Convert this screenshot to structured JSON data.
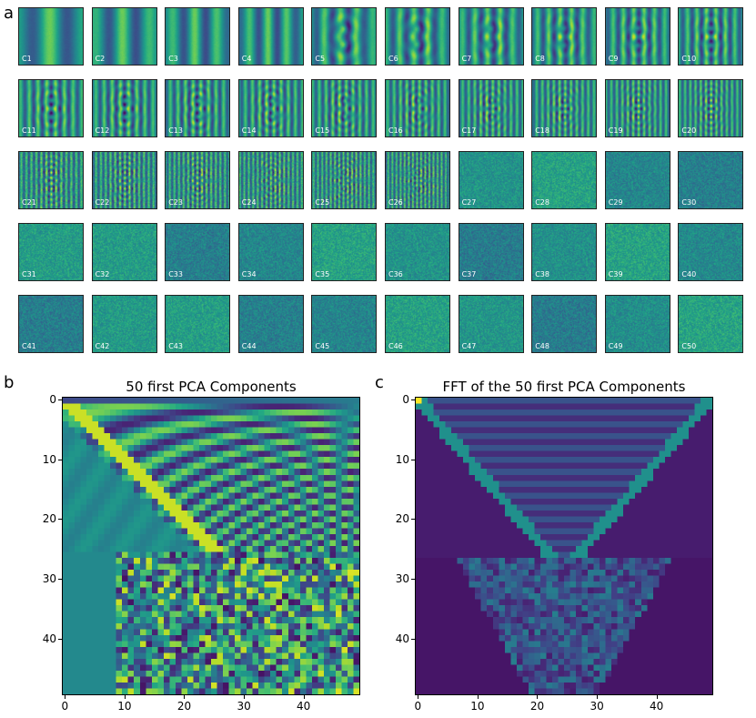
{
  "panels": {
    "a": "a",
    "b": "b",
    "c": "c"
  },
  "chart_data": [
    {
      "type": "heatmap",
      "panel": "a",
      "title": "",
      "grid": {
        "rows": 5,
        "cols": 10
      },
      "labels": [
        "C1",
        "C2",
        "C3",
        "C4",
        "C5",
        "C6",
        "C7",
        "C8",
        "C9",
        "C10",
        "C11",
        "C12",
        "C13",
        "C14",
        "C15",
        "C16",
        "C17",
        "C18",
        "C19",
        "C20",
        "C21",
        "C22",
        "C23",
        "C24",
        "C25",
        "C26",
        "C27",
        "C28",
        "C29",
        "C30",
        "C31",
        "C32",
        "C33",
        "C34",
        "C35",
        "C36",
        "C37",
        "C38",
        "C39",
        "C40",
        "C41",
        "C42",
        "C43",
        "C44",
        "C45",
        "C46",
        "C47",
        "C48",
        "C49",
        "C50"
      ],
      "structured_components": 26,
      "colormap": "viridis"
    },
    {
      "type": "heatmap",
      "panel": "b",
      "title": "50 first PCA Components",
      "xlim": [
        0,
        49
      ],
      "ylim": [
        49,
        0
      ],
      "xticks": [
        "0",
        "10",
        "20",
        "30",
        "40"
      ],
      "yticks": [
        "0",
        "10",
        "20",
        "30",
        "40"
      ],
      "colormap": "viridis"
    },
    {
      "type": "heatmap",
      "panel": "c",
      "title": "FFT of the 50 first PCA Components",
      "xlim": [
        0,
        49
      ],
      "ylim": [
        49,
        0
      ],
      "xticks": [
        "0",
        "10",
        "20",
        "30",
        "40"
      ],
      "yticks": [
        "0",
        "10",
        "20",
        "30",
        "40"
      ],
      "colormap": "viridis"
    }
  ]
}
